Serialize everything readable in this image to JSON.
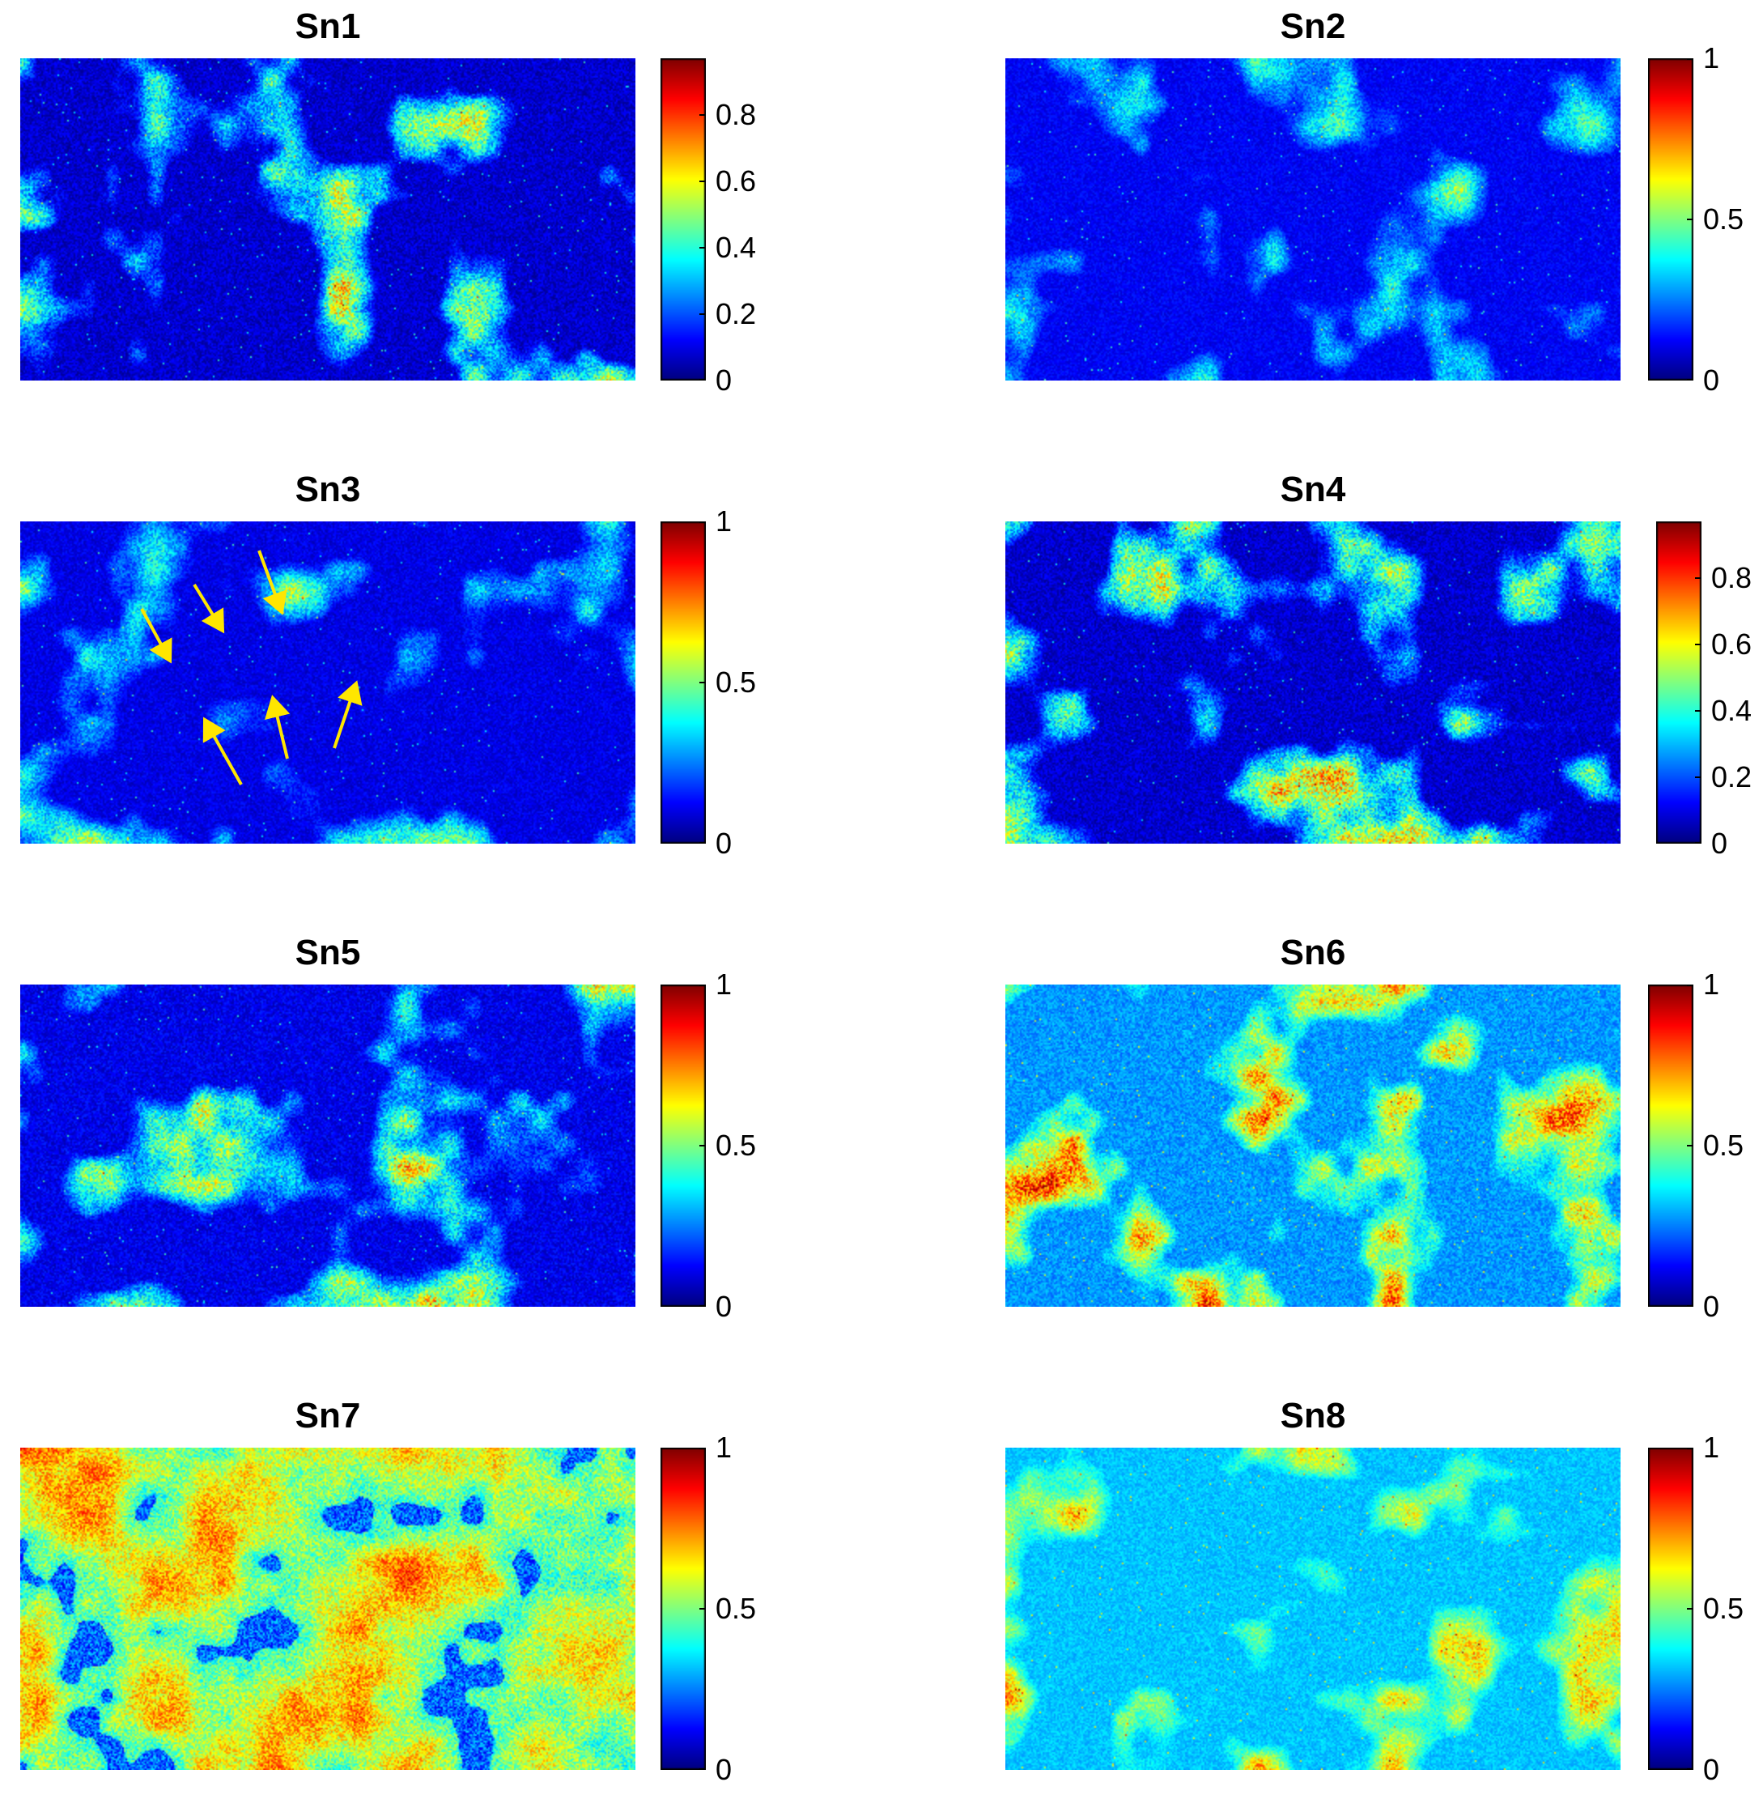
{
  "chart_data": [
    {
      "type": "heatmap",
      "title": "Sn1",
      "colormap": "jet",
      "clim": [
        0,
        0.97
      ],
      "colorbar_ticks": [
        "0",
        "0.2",
        "0.4",
        "0.6",
        "0.8"
      ],
      "colorbar_tick_values": [
        0,
        0.2,
        0.4,
        0.6,
        0.8
      ],
      "background_level": 0.05,
      "bright_level": 0.3
    },
    {
      "type": "heatmap",
      "title": "Sn2",
      "colormap": "jet",
      "clim": [
        0,
        1
      ],
      "colorbar_ticks": [
        "0",
        "0.5",
        "1"
      ],
      "colorbar_tick_values": [
        0,
        0.5,
        1
      ],
      "background_level": 0.1,
      "bright_level": 0.22
    },
    {
      "type": "heatmap",
      "title": "Sn3",
      "colormap": "jet",
      "clim": [
        0,
        1
      ],
      "colorbar_ticks": [
        "0",
        "0.5",
        "1"
      ],
      "colorbar_tick_values": [
        0,
        0.5,
        1
      ],
      "background_level": 0.08,
      "bright_level": 0.25,
      "annotations": [
        {
          "type": "arrow",
          "color": "#ffe600",
          "count": 6
        }
      ]
    },
    {
      "type": "heatmap",
      "title": "Sn4",
      "colormap": "jet",
      "clim": [
        0,
        0.97
      ],
      "colorbar_ticks": [
        "0",
        "0.2",
        "0.4",
        "0.6",
        "0.8"
      ],
      "colorbar_tick_values": [
        0,
        0.2,
        0.4,
        0.6,
        0.8
      ],
      "background_level": 0.05,
      "bright_level": 0.3
    },
    {
      "type": "heatmap",
      "title": "Sn5",
      "colormap": "jet",
      "clim": [
        0,
        1
      ],
      "colorbar_ticks": [
        "0",
        "0.5",
        "1"
      ],
      "colorbar_tick_values": [
        0,
        0.5,
        1
      ],
      "background_level": 0.08,
      "bright_level": 0.3
    },
    {
      "type": "heatmap",
      "title": "Sn6",
      "colormap": "jet",
      "clim": [
        0,
        1
      ],
      "colorbar_ticks": [
        "0",
        "0.5",
        "1"
      ],
      "colorbar_tick_values": [
        0,
        0.5,
        1
      ],
      "background_level": 0.25,
      "bright_level": 0.3
    },
    {
      "type": "heatmap",
      "title": "Sn7",
      "colormap": "jet",
      "clim": [
        0,
        1
      ],
      "colorbar_ticks": [
        "0",
        "0.5",
        "1"
      ],
      "colorbar_tick_values": [
        0,
        0.5,
        1
      ],
      "background_level": 0.55,
      "bright_level": 0.15
    },
    {
      "type": "heatmap",
      "title": "Sn8",
      "colormap": "jet",
      "clim": [
        0,
        1
      ],
      "colorbar_ticks": [
        "0",
        "0.5",
        "1"
      ],
      "colorbar_tick_values": [
        0,
        0.5,
        1
      ],
      "background_level": 0.3,
      "bright_level": 0.22
    }
  ]
}
